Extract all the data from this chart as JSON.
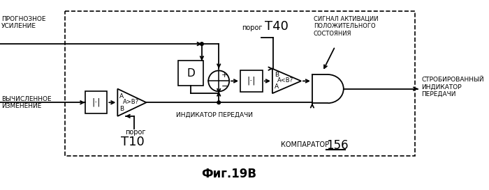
{
  "title": "Фиг.19В",
  "bg_color": "#ffffff",
  "line_color": "#000000",
  "text_color": "#000000",
  "fig_width": 7.0,
  "fig_height": 2.73,
  "dpi": 100,
  "labels": {
    "prog_usilenie": "ПРОГНОЗНОЕ\nУСИЛЕНИЕ",
    "vych_izmenenie": "ВЫЧИСЛЕННОЕ\nИЗМЕНЕНИЕ",
    "porog_T40": "порог",
    "T40": "Т40",
    "porog_T10": "порог\nТ10",
    "signal_aktivacii": "СИГНАЛ АКТИВАЦИИ\nПОЛОЖИТЕЛЬНОГО\nСОСТОЯНИЯ",
    "strobirovanny": "СТРОБИРОВАННЫЙ\nИНДИКАТОР\nПЕРЕДАЧИ",
    "indikator": "ИНДИКАТОР ПЕРЕДАЧИ",
    "komparator": "КОМПАРАТОР",
    "komparator_num": "156"
  }
}
